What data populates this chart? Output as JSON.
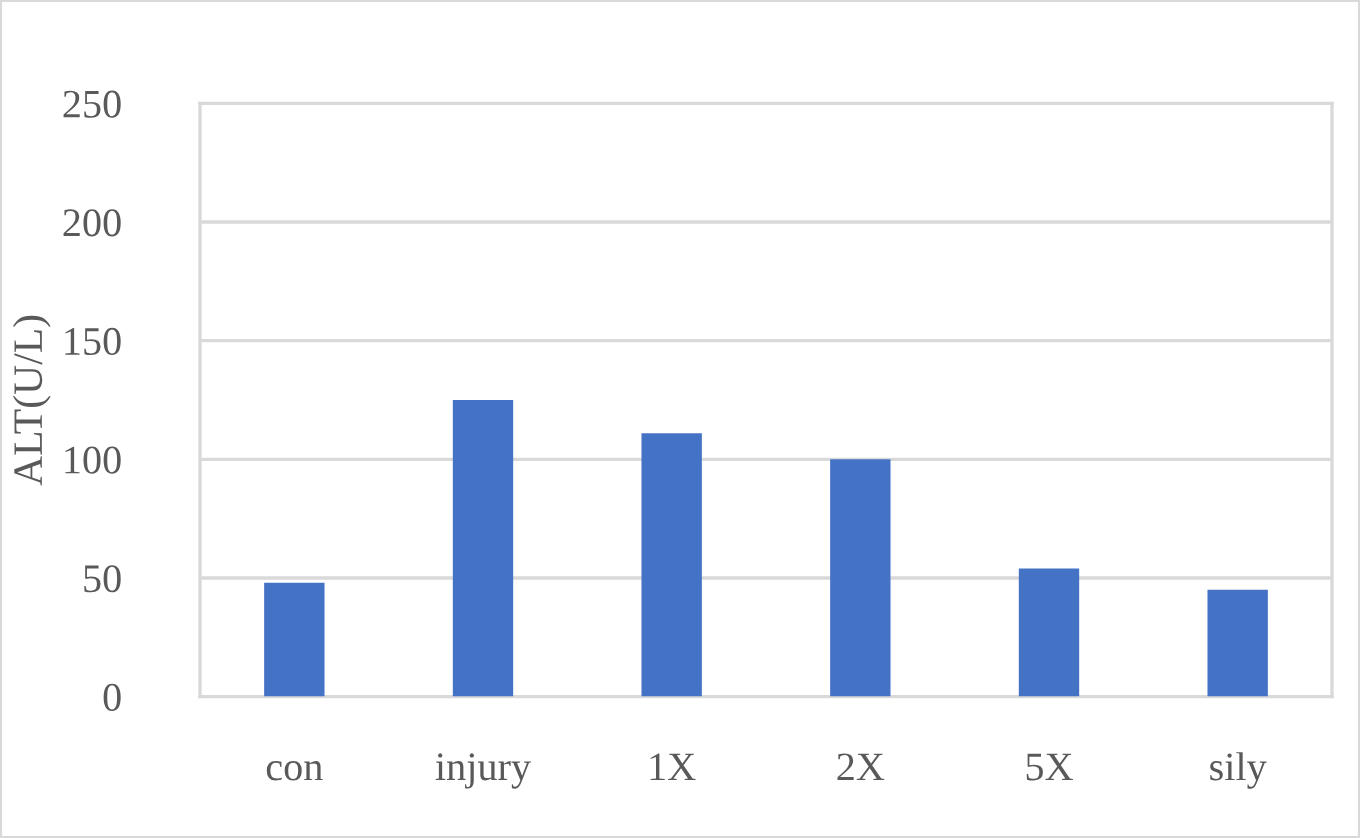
{
  "chart_data": {
    "type": "bar",
    "ylabel": "ALT(U/L)",
    "categories": [
      "con",
      "injury",
      "1X",
      "2X",
      "5X",
      "sily"
    ],
    "values": [
      48,
      125,
      111,
      100,
      54,
      45
    ],
    "color": "#4472c4",
    "ylim": [
      0,
      250
    ],
    "yticks": [
      0,
      50,
      100,
      150,
      200,
      250
    ],
    "grid": "y"
  }
}
